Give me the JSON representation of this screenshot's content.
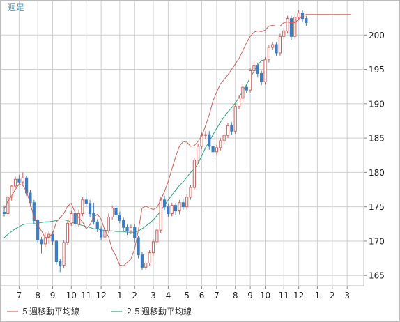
{
  "chart_data": {
    "type": "candlestick",
    "period_label": "週足",
    "y_ticks": [
      165,
      170,
      175,
      180,
      185,
      190,
      195,
      200
    ],
    "ylim": [
      163.5,
      205
    ],
    "x_tick_labels": [
      "7",
      "8",
      "9",
      "10",
      "11",
      "12",
      "1",
      "2",
      "3",
      "4",
      "5",
      "6",
      "7",
      "8",
      "9",
      "10",
      "11",
      "12",
      "1",
      "2",
      "3"
    ],
    "x_tick_week_index": [
      4,
      9,
      13,
      18,
      22,
      26,
      31,
      35,
      40,
      44,
      49,
      53,
      57,
      62,
      66,
      70,
      75,
      79,
      84,
      88,
      92
    ],
    "grid": true,
    "colors": {
      "up_candle": "#c9635e",
      "down_candle": "#3d7cc0",
      "ma5": "#d0605a",
      "ma25": "#27a57d",
      "grid": "#cfcfcf",
      "axis": "#888888"
    },
    "series": [
      {
        "name": "５週移動平均線",
        "color": "#d0605a",
        "values": [
          174.7,
          175.8,
          176.6,
          177.5,
          178.3,
          178.1,
          177.2,
          175.5,
          173.4,
          172.3,
          171.5,
          170.5,
          170.6,
          171.1,
          172.8,
          173.4,
          174.0,
          175.1,
          175.5,
          174.2,
          173.4,
          172.8,
          171.8,
          172.4,
          173.5,
          173.9,
          173.2,
          171.6,
          170.6,
          168.8,
          167.8,
          166.5,
          166.4,
          166.9,
          167.4,
          168.9,
          171.6,
          174.8,
          175.1,
          174.8,
          174.6,
          174.9,
          176.0,
          177.2,
          178.7,
          180.5,
          182.3,
          183.8,
          184.5,
          184.4,
          183.8,
          183.9,
          184.5,
          185.3,
          186.8,
          188.4,
          190.4,
          191.7,
          192.9,
          193.5,
          194.2,
          195.0,
          195.8,
          196.6,
          197.7,
          198.9,
          199.8,
          200.4,
          200.6,
          200.5,
          200.7,
          201.3,
          201.4,
          201.3,
          201.3,
          201.8,
          201.9,
          201.8,
          201.8,
          202.3,
          202.8,
          203.0,
          203.0,
          203.0,
          203.0,
          203.0,
          203.0,
          203.0,
          203.0,
          203.0,
          203.0,
          203.0,
          203.0,
          203.0
        ]
      },
      {
        "name": "２５週移動平均線",
        "color": "#27a57d",
        "values": [
          170.5,
          171.0,
          171.4,
          171.8,
          172.1,
          172.4,
          172.5,
          172.5,
          172.5,
          172.6,
          172.7,
          172.8,
          172.8,
          172.9,
          173.0,
          173.1,
          173.1,
          173.0,
          172.8,
          172.6,
          172.4,
          172.3,
          172.1,
          172.0,
          171.8,
          171.8,
          171.6,
          171.6,
          171.5,
          171.5,
          171.4,
          171.4,
          171.4,
          171.3,
          171.3,
          171.3,
          171.5,
          171.8,
          172.2,
          172.6,
          173.1,
          173.7,
          174.4,
          175.2,
          176.0,
          176.7,
          177.4,
          178.1,
          178.6,
          179.3,
          180.0,
          180.5,
          181.3,
          182.4,
          183.6,
          184.5,
          185.5,
          186.4,
          187.3,
          188.1,
          188.8,
          189.4,
          190.1,
          190.9,
          191.8,
          192.8,
          193.8,
          194.7,
          195.6,
          196.3,
          196.4
        ]
      }
    ],
    "candles": [
      [
        174.2,
        174.0,
        175.2,
        173.6
      ],
      [
        174.0,
        176.4,
        176.6,
        173.7
      ],
      [
        176.4,
        178.0,
        178.2,
        175.9
      ],
      [
        178.0,
        179.0,
        179.4,
        177.7
      ],
      [
        179.0,
        178.6,
        179.6,
        178.2
      ],
      [
        178.6,
        179.2,
        180.0,
        178.0
      ],
      [
        179.2,
        177.0,
        179.5,
        176.6
      ],
      [
        177.0,
        175.6,
        177.5,
        175.0
      ],
      [
        175.6,
        173.0,
        176.0,
        172.5
      ],
      [
        173.0,
        170.2,
        173.2,
        169.8
      ],
      [
        170.2,
        169.6,
        170.6,
        168.2
      ],
      [
        169.6,
        170.5,
        171.3,
        169.1
      ],
      [
        170.5,
        171.0,
        171.5,
        169.6
      ],
      [
        171.0,
        170.0,
        171.4,
        169.4
      ],
      [
        170.0,
        167.0,
        170.2,
        166.6
      ],
      [
        167.0,
        166.5,
        167.4,
        165.5
      ],
      [
        166.5,
        169.8,
        170.2,
        166.1
      ],
      [
        169.8,
        172.6,
        173.0,
        169.5
      ],
      [
        172.6,
        174.0,
        174.4,
        172.2
      ],
      [
        174.0,
        172.5,
        175.0,
        172.0
      ],
      [
        172.5,
        174.0,
        174.6,
        172.1
      ],
      [
        174.0,
        176.0,
        176.4,
        173.6
      ],
      [
        176.0,
        175.5,
        177.0,
        175.0
      ],
      [
        175.5,
        174.0,
        176.0,
        173.5
      ],
      [
        174.0,
        172.8,
        175.6,
        172.4
      ],
      [
        172.8,
        171.8,
        173.2,
        171.3
      ],
      [
        171.8,
        170.6,
        172.2,
        170.1
      ],
      [
        170.6,
        171.5,
        171.9,
        170.2
      ],
      [
        171.5,
        173.5,
        174.0,
        171.1
      ],
      [
        173.5,
        174.8,
        175.2,
        173.1
      ],
      [
        174.8,
        173.8,
        175.3,
        173.3
      ],
      [
        173.8,
        173.0,
        174.3,
        172.6
      ],
      [
        173.0,
        172.0,
        173.4,
        171.5
      ],
      [
        172.0,
        171.5,
        172.4,
        170.9
      ],
      [
        171.5,
        172.0,
        172.4,
        171.0
      ],
      [
        172.0,
        170.5,
        172.5,
        169.8
      ],
      [
        170.5,
        168.0,
        170.8,
        167.5
      ],
      [
        168.0,
        166.2,
        168.4,
        165.8
      ],
      [
        166.2,
        166.8,
        167.2,
        165.8
      ],
      [
        166.8,
        168.3,
        168.7,
        166.4
      ],
      [
        168.3,
        169.9,
        170.3,
        167.9
      ],
      [
        169.9,
        171.6,
        172.0,
        169.5
      ],
      [
        171.6,
        176.0,
        176.4,
        171.2
      ],
      [
        176.0,
        175.0,
        176.6,
        174.5
      ],
      [
        175.0,
        174.0,
        175.5,
        173.5
      ],
      [
        174.0,
        175.2,
        175.6,
        173.6
      ],
      [
        175.2,
        174.4,
        175.6,
        173.8
      ],
      [
        174.4,
        175.6,
        176.0,
        173.9
      ],
      [
        175.6,
        175.0,
        176.2,
        174.5
      ],
      [
        175.0,
        176.4,
        176.8,
        174.6
      ],
      [
        176.4,
        177.8,
        178.2,
        176.0
      ],
      [
        177.8,
        181.8,
        182.2,
        177.4
      ],
      [
        181.8,
        183.8,
        184.2,
        181.3
      ],
      [
        183.8,
        185.4,
        185.8,
        183.4
      ],
      [
        185.4,
        185.5,
        186.0,
        184.8
      ],
      [
        185.5,
        183.8,
        186.0,
        183.3
      ],
      [
        183.8,
        183.0,
        184.3,
        182.3
      ],
      [
        183.0,
        183.6,
        184.0,
        182.6
      ],
      [
        183.6,
        184.6,
        185.0,
        183.2
      ],
      [
        184.6,
        185.4,
        185.8,
        184.2
      ],
      [
        185.4,
        186.8,
        187.2,
        185.0
      ],
      [
        186.8,
        186.0,
        187.3,
        185.5
      ],
      [
        186.0,
        189.6,
        190.0,
        185.6
      ],
      [
        189.6,
        190.8,
        191.2,
        189.2
      ],
      [
        190.8,
        192.4,
        192.8,
        190.4
      ],
      [
        192.4,
        192.0,
        192.8,
        191.5
      ],
      [
        192.0,
        194.8,
        195.2,
        191.6
      ],
      [
        194.8,
        195.6,
        196.2,
        194.4
      ],
      [
        195.6,
        194.4,
        196.0,
        193.8
      ],
      [
        194.4,
        193.2,
        194.8,
        192.7
      ],
      [
        193.2,
        196.4,
        196.8,
        192.8
      ],
      [
        196.4,
        198.2,
        198.6,
        196.0
      ],
      [
        198.2,
        198.6,
        199.0,
        197.8
      ],
      [
        198.6,
        197.4,
        199.0,
        197.0
      ],
      [
        197.4,
        199.8,
        200.2,
        197.0
      ],
      [
        199.8,
        200.6,
        201.0,
        199.4
      ],
      [
        200.6,
        202.4,
        202.8,
        200.2
      ],
      [
        202.4,
        199.8,
        202.8,
        199.3
      ],
      [
        199.8,
        202.6,
        203.0,
        199.4
      ],
      [
        202.6,
        203.2,
        203.6,
        202.2
      ],
      [
        203.2,
        202.4,
        203.6,
        201.9
      ],
      [
        202.4,
        201.8,
        202.8,
        201.3
      ]
    ]
  },
  "legend": {
    "ma5_label": "５週移動平均線",
    "ma25_label": "２５週移動平均線"
  }
}
